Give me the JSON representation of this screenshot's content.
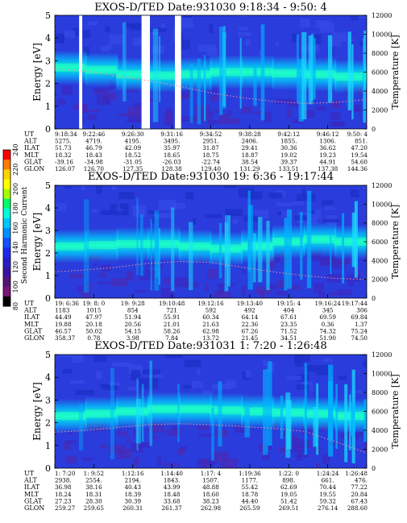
{
  "colorbar": {
    "label": "Second Harmonic Current",
    "ticks": [
      "240",
      "220",
      "200",
      "180",
      "160",
      "140",
      "120",
      "100",
      "80"
    ],
    "colors": [
      "#ff0000",
      "#ff7a00",
      "#ffd200",
      "#ffff00",
      "#a6ff00",
      "#00ff66",
      "#00ffd8",
      "#00c8ff",
      "#0090ff",
      "#1450ff",
      "#1e28f0",
      "#281ec8",
      "#3a14a0",
      "#551478",
      "#7a1478",
      "#000000"
    ]
  },
  "row_labels": [
    "UT",
    "ALT",
    "ILAT",
    "MLT",
    "GLAT",
    "GLON"
  ],
  "chart_data": [
    {
      "type": "heatmap",
      "title": "EXOS-D/TED   Date:931030   9:18:34 - 9:50: 4",
      "ylabel": "Energy [eV]",
      "y2label": "Temperature [K]",
      "ylim": [
        0,
        5
      ],
      "y2lim": [
        0,
        12000
      ],
      "yticks": [
        "0",
        "1",
        "2",
        "3",
        "4",
        "5"
      ],
      "y2ticks": [
        "0",
        "2000",
        "4000",
        "6000",
        "8000",
        "10000",
        "12000"
      ],
      "band_center": [
        2.7,
        2.6,
        2.4,
        2.35,
        2.4,
        2.5,
        2.5,
        2.45,
        2.4,
        2.3
      ],
      "gaps": [
        [
          0.078,
          0.088
        ],
        [
          0.278,
          0.305
        ],
        [
          0.385,
          0.405
        ]
      ],
      "temperature": [
        6400,
        6100,
        5600,
        5100,
        4500,
        3800,
        3300,
        2900,
        2700,
        2800,
        3100
      ],
      "table": {
        "UT": [
          "9:18:34",
          "9:22:46",
          "9:26:30",
          "9:31:16",
          "9:34:52",
          "9:38:28",
          "9:42:12",
          "9:46:12",
          "9:50: 4"
        ],
        "ALT": [
          "5275.",
          "4719.",
          "4195.",
          "3495.",
          "2951.",
          "2406.",
          "1855.",
          "1306.",
          "851."
        ],
        "ILAT": [
          "51.73",
          "46.79",
          "42.09",
          "35.97",
          "31.87",
          "29.41",
          "30.36",
          "36.62",
          "47.20"
        ],
        "MLT": [
          "18.32",
          "18.43",
          "18.52",
          "18.65",
          "18.75",
          "18.87",
          "19.02",
          "19.23",
          "19.54"
        ],
        "GLAT": [
          "-39.16",
          "-34.98",
          "-31.05",
          "-26.03",
          "-22.74",
          "38.54",
          "39.37",
          "44.91",
          "54.60"
        ],
        "GLON": [
          "126.07",
          "126.70",
          "127.35",
          "128.38",
          "129.40",
          "131.29",
          "133.51",
          "137.38",
          "144.36"
        ]
      }
    },
    {
      "type": "heatmap",
      "title": "EXOS-D/TED   Date:931030   19: 6:36 - 19:17:44",
      "ylabel": "Energy [eV]",
      "y2label": "Temperature [K]",
      "ylim": [
        0,
        5
      ],
      "y2lim": [
        0,
        12000
      ],
      "yticks": [
        "0",
        "1",
        "2",
        "3",
        "4",
        "5"
      ],
      "y2ticks": [
        "0",
        "2000",
        "4000",
        "6000",
        "8000",
        "10000",
        "12000"
      ],
      "band_center": [
        2.3,
        2.35,
        2.4,
        2.4,
        2.3,
        2.2,
        2.3,
        2.5,
        2.6,
        2.5
      ],
      "gaps": [],
      "temperature": [
        2800,
        3000,
        3300,
        3700,
        3900,
        3800,
        3300,
        2800,
        2400,
        2100,
        2000
      ],
      "table": {
        "UT": [
          "19: 6:36",
          "19: 8: 0",
          "19: 9:28",
          "19:10:48",
          "19:12:16",
          "19:13:40",
          "19:15: 4",
          "19:16:24",
          "19:17:44"
        ],
        "ALT": [
          "1183",
          "1015",
          "854",
          "721",
          "592",
          "492",
          "404",
          "345",
          "306"
        ],
        "ILAT": [
          "44.49",
          "47.97",
          "51.94",
          "55.91",
          "60.34",
          "64.14",
          "67.61",
          "69.59",
          "69.84"
        ],
        "MLT": [
          "19.88",
          "20.18",
          "20.56",
          "21.01",
          "21.63",
          "22.36",
          "23.35",
          "0.36",
          "1.37"
        ],
        "GLAT": [
          "46.57",
          "50.02",
          "54.15",
          "58.26",
          "62.98",
          "67.26",
          "71.52",
          "74.32",
          "75.24"
        ],
        "GLON": [
          "358.37",
          "0.78",
          "3.98",
          "7.84",
          "13.72",
          "21.45",
          "34.51",
          "51.90",
          "74.50"
        ]
      }
    },
    {
      "type": "heatmap",
      "title": "EXOS-D/TED   Date:931031   1: 7:20 - 1:26:48",
      "ylabel": "Energy [eV]",
      "y2label": "Temperature [K]",
      "ylim": [
        0,
        5
      ],
      "y2lim": [
        0,
        12000
      ],
      "yticks": [
        "0",
        "1",
        "2",
        "3",
        "4",
        "5"
      ],
      "y2ticks": [
        "0",
        "2000",
        "4000",
        "6000",
        "8000",
        "10000",
        "12000"
      ],
      "band_center": [
        2.3,
        2.4,
        2.5,
        2.6,
        2.6,
        2.55,
        2.5,
        2.45,
        2.4,
        2.3
      ],
      "gaps": [],
      "temperature": [
        3800,
        4000,
        4300,
        4600,
        4700,
        4600,
        4400,
        4200,
        3900,
        2800,
        1600
      ],
      "table": {
        "UT": [
          "1: 7:20",
          "1: 9:52",
          "1:12:16",
          "1:14:40",
          "1:17: 4",
          "1:19:36",
          "1:22: 0",
          "1:24:24",
          "1:26:48"
        ],
        "ALT": [
          "2938.",
          "2554.",
          "2194.",
          "1843.",
          "1507.",
          "1177.",
          "898.",
          "661.",
          "476."
        ],
        "ILAT": [
          "36.98",
          "38.16",
          "40.43",
          "43.99",
          "48.88",
          "55.42",
          "62.69",
          "70.44",
          "77.22"
        ],
        "MLT": [
          "18.24",
          "18.31",
          "18.39",
          "18.48",
          "18.60",
          "18.78",
          "19.05",
          "19.55",
          "20.84"
        ],
        "GLAT": [
          "27.23",
          "28.30",
          "30.39",
          "33.68",
          "38.23",
          "44.40",
          "51.42",
          "59.32",
          "67.43"
        ],
        "GLON": [
          "259.27",
          "259.65",
          "260.31",
          "261.37",
          "262.98",
          "265.59",
          "269.51",
          "276.14",
          "288.60"
        ]
      }
    }
  ]
}
